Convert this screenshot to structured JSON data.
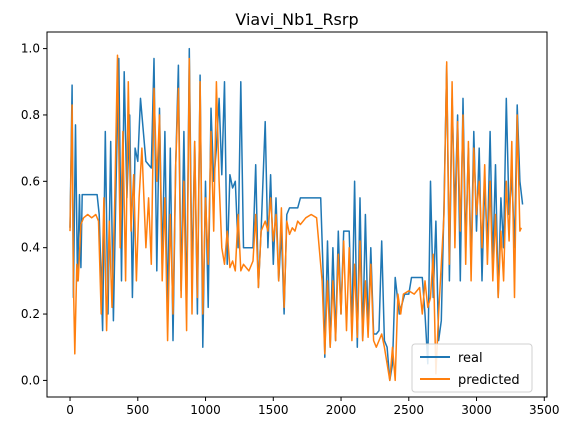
{
  "chart_data": {
    "type": "line",
    "title": "Viavi_Nb1_Rsrp",
    "xlabel": "",
    "ylabel": "",
    "xlim": [
      -170,
      3520
    ],
    "ylim": [
      -0.05,
      1.05
    ],
    "xticks": [
      0,
      500,
      1000,
      1500,
      2000,
      2500,
      3000,
      3500
    ],
    "xtick_labels": [
      "0",
      "500",
      "1000",
      "1500",
      "2000",
      "2500",
      "3000",
      "3500"
    ],
    "yticks": [
      0.0,
      0.2,
      0.4,
      0.6,
      0.8,
      1.0
    ],
    "ytick_labels": [
      "0.0",
      "0.2",
      "0.4",
      "0.6",
      "0.8",
      "1.0"
    ],
    "grid": false,
    "legend_position": "lower-right",
    "series": [
      {
        "name": "real",
        "color": "#1f77b4",
        "points": [
          [
            0,
            0.46
          ],
          [
            15,
            0.89
          ],
          [
            25,
            0.25
          ],
          [
            40,
            0.77
          ],
          [
            55,
            0.3
          ],
          [
            70,
            0.56
          ],
          [
            80,
            0.34
          ],
          [
            90,
            0.56
          ],
          [
            200,
            0.56
          ],
          [
            215,
            0.5
          ],
          [
            240,
            0.15
          ],
          [
            260,
            0.75
          ],
          [
            280,
            0.2
          ],
          [
            300,
            0.72
          ],
          [
            320,
            0.18
          ],
          [
            340,
            0.6
          ],
          [
            360,
            0.97
          ],
          [
            380,
            0.3
          ],
          [
            400,
            0.93
          ],
          [
            420,
            0.55
          ],
          [
            440,
            0.8
          ],
          [
            460,
            0.25
          ],
          [
            480,
            0.7
          ],
          [
            500,
            0.66
          ],
          [
            520,
            0.85
          ],
          [
            560,
            0.66
          ],
          [
            600,
            0.64
          ],
          [
            620,
            0.97
          ],
          [
            640,
            0.33
          ],
          [
            660,
            0.82
          ],
          [
            680,
            0.35
          ],
          [
            700,
            0.75
          ],
          [
            720,
            0.2
          ],
          [
            740,
            0.7
          ],
          [
            760,
            0.12
          ],
          [
            780,
            0.65
          ],
          [
            800,
            0.95
          ],
          [
            820,
            0.27
          ],
          [
            840,
            0.75
          ],
          [
            860,
            0.2
          ],
          [
            880,
            1.0
          ],
          [
            900,
            0.3
          ],
          [
            920,
            0.72
          ],
          [
            940,
            0.2
          ],
          [
            960,
            0.92
          ],
          [
            980,
            0.1
          ],
          [
            1000,
            0.6
          ],
          [
            1020,
            0.22
          ],
          [
            1040,
            0.82
          ],
          [
            1060,
            0.6
          ],
          [
            1080,
            0.7
          ],
          [
            1100,
            0.85
          ],
          [
            1120,
            0.62
          ],
          [
            1140,
            0.9
          ],
          [
            1160,
            0.35
          ],
          [
            1180,
            0.62
          ],
          [
            1200,
            0.58
          ],
          [
            1220,
            0.6
          ],
          [
            1240,
            0.4
          ],
          [
            1260,
            0.9
          ],
          [
            1280,
            0.4
          ],
          [
            1350,
            0.4
          ],
          [
            1370,
            0.65
          ],
          [
            1390,
            0.28
          ],
          [
            1410,
            0.45
          ],
          [
            1440,
            0.78
          ],
          [
            1460,
            0.4
          ],
          [
            1480,
            0.62
          ],
          [
            1500,
            0.35
          ],
          [
            1520,
            0.55
          ],
          [
            1540,
            0.3
          ],
          [
            1560,
            0.45
          ],
          [
            1580,
            0.2
          ],
          [
            1600,
            0.5
          ],
          [
            1620,
            0.52
          ],
          [
            1680,
            0.52
          ],
          [
            1700,
            0.55
          ],
          [
            1850,
            0.55
          ],
          [
            1870,
            0.3
          ],
          [
            1880,
            0.07
          ],
          [
            1900,
            0.42
          ],
          [
            1920,
            0.1
          ],
          [
            1940,
            0.4
          ],
          [
            1960,
            0.12
          ],
          [
            1980,
            0.45
          ],
          [
            2000,
            0.2
          ],
          [
            2020,
            0.45
          ],
          [
            2060,
            0.45
          ],
          [
            2080,
            0.15
          ],
          [
            2100,
            0.6
          ],
          [
            2120,
            0.1
          ],
          [
            2140,
            0.55
          ],
          [
            2160,
            0.12
          ],
          [
            2180,
            0.5
          ],
          [
            2200,
            0.15
          ],
          [
            2220,
            0.4
          ],
          [
            2240,
            0.14
          ],
          [
            2260,
            0.14
          ],
          [
            2280,
            0.15
          ],
          [
            2300,
            0.42
          ],
          [
            2320,
            0.12
          ],
          [
            2340,
            0.1
          ],
          [
            2360,
            0.0
          ],
          [
            2380,
            0.05
          ],
          [
            2400,
            0.31
          ],
          [
            2430,
            0.2
          ],
          [
            2470,
            0.26
          ],
          [
            2500,
            0.26
          ],
          [
            2520,
            0.31
          ],
          [
            2600,
            0.31
          ],
          [
            2620,
            0.2
          ],
          [
            2640,
            0.05
          ],
          [
            2660,
            0.6
          ],
          [
            2680,
            0.25
          ],
          [
            2700,
            0.48
          ],
          [
            2720,
            0.12
          ],
          [
            2740,
            0.18
          ],
          [
            2760,
            0.53
          ],
          [
            2780,
            0.95
          ],
          [
            2800,
            0.3
          ],
          [
            2820,
            0.85
          ],
          [
            2840,
            0.5
          ],
          [
            2860,
            0.8
          ],
          [
            2880,
            0.3
          ],
          [
            2900,
            0.85
          ],
          [
            2920,
            0.4
          ],
          [
            2940,
            0.7
          ],
          [
            2960,
            0.35
          ],
          [
            2980,
            0.75
          ],
          [
            3000,
            0.45
          ],
          [
            3020,
            0.7
          ],
          [
            3040,
            0.3
          ],
          [
            3060,
            0.6
          ],
          [
            3080,
            0.4
          ],
          [
            3100,
            0.75
          ],
          [
            3120,
            0.35
          ],
          [
            3140,
            0.65
          ],
          [
            3160,
            0.25
          ],
          [
            3180,
            0.55
          ],
          [
            3200,
            0.4
          ],
          [
            3220,
            0.85
          ],
          [
            3240,
            0.5
          ],
          [
            3260,
            0.62
          ],
          [
            3280,
            0.4
          ],
          [
            3300,
            0.83
          ],
          [
            3320,
            0.6
          ],
          [
            3340,
            0.53
          ]
        ]
      },
      {
        "name": "predicted",
        "color": "#ff7f0e",
        "points": [
          [
            0,
            0.45
          ],
          [
            15,
            0.83
          ],
          [
            25,
            0.3
          ],
          [
            35,
            0.08
          ],
          [
            50,
            0.35
          ],
          [
            60,
            0.3
          ],
          [
            80,
            0.47
          ],
          [
            100,
            0.49
          ],
          [
            130,
            0.5
          ],
          [
            160,
            0.49
          ],
          [
            190,
            0.5
          ],
          [
            210,
            0.48
          ],
          [
            230,
            0.2
          ],
          [
            250,
            0.55
          ],
          [
            270,
            0.15
          ],
          [
            290,
            0.48
          ],
          [
            310,
            0.22
          ],
          [
            330,
            0.55
          ],
          [
            350,
            0.98
          ],
          [
            370,
            0.4
          ],
          [
            390,
            0.75
          ],
          [
            410,
            0.3
          ],
          [
            430,
            0.9
          ],
          [
            450,
            0.45
          ],
          [
            470,
            0.62
          ],
          [
            490,
            0.3
          ],
          [
            510,
            0.55
          ],
          [
            530,
            0.7
          ],
          [
            560,
            0.4
          ],
          [
            580,
            0.55
          ],
          [
            600,
            0.35
          ],
          [
            620,
            0.88
          ],
          [
            640,
            0.6
          ],
          [
            660,
            0.8
          ],
          [
            680,
            0.3
          ],
          [
            700,
            0.55
          ],
          [
            720,
            0.12
          ],
          [
            740,
            0.5
          ],
          [
            760,
            0.2
          ],
          [
            780,
            0.65
          ],
          [
            800,
            0.88
          ],
          [
            820,
            0.25
          ],
          [
            840,
            0.6
          ],
          [
            860,
            0.15
          ],
          [
            880,
            0.97
          ],
          [
            900,
            0.2
          ],
          [
            920,
            0.72
          ],
          [
            940,
            0.25
          ],
          [
            960,
            0.9
          ],
          [
            980,
            0.2
          ],
          [
            1000,
            0.55
          ],
          [
            1020,
            0.35
          ],
          [
            1040,
            0.75
          ],
          [
            1060,
            0.45
          ],
          [
            1080,
            0.9
          ],
          [
            1100,
            0.6
          ],
          [
            1120,
            0.4
          ],
          [
            1140,
            0.35
          ],
          [
            1160,
            0.45
          ],
          [
            1180,
            0.34
          ],
          [
            1200,
            0.36
          ],
          [
            1220,
            0.33
          ],
          [
            1240,
            0.5
          ],
          [
            1260,
            0.33
          ],
          [
            1280,
            0.35
          ],
          [
            1300,
            0.34
          ],
          [
            1320,
            0.33
          ],
          [
            1350,
            0.36
          ],
          [
            1370,
            0.5
          ],
          [
            1390,
            0.28
          ],
          [
            1410,
            0.45
          ],
          [
            1440,
            0.48
          ],
          [
            1460,
            0.45
          ],
          [
            1480,
            0.55
          ],
          [
            1500,
            0.42
          ],
          [
            1520,
            0.5
          ],
          [
            1540,
            0.3
          ],
          [
            1560,
            0.52
          ],
          [
            1580,
            0.22
          ],
          [
            1600,
            0.48
          ],
          [
            1620,
            0.44
          ],
          [
            1640,
            0.46
          ],
          [
            1660,
            0.45
          ],
          [
            1680,
            0.48
          ],
          [
            1700,
            0.47
          ],
          [
            1740,
            0.49
          ],
          [
            1780,
            0.5
          ],
          [
            1820,
            0.49
          ],
          [
            1860,
            0.3
          ],
          [
            1880,
            0.08
          ],
          [
            1900,
            0.3
          ],
          [
            1920,
            0.1
          ],
          [
            1940,
            0.3
          ],
          [
            1960,
            0.12
          ],
          [
            1980,
            0.38
          ],
          [
            2000,
            0.2
          ],
          [
            2020,
            0.42
          ],
          [
            2040,
            0.15
          ],
          [
            2060,
            0.4
          ],
          [
            2080,
            0.12
          ],
          [
            2100,
            0.35
          ],
          [
            2120,
            0.13
          ],
          [
            2140,
            0.42
          ],
          [
            2160,
            0.12
          ],
          [
            2180,
            0.3
          ],
          [
            2200,
            0.13
          ],
          [
            2220,
            0.35
          ],
          [
            2240,
            0.12
          ],
          [
            2260,
            0.1
          ],
          [
            2280,
            0.12
          ],
          [
            2300,
            0.14
          ],
          [
            2320,
            0.1
          ],
          [
            2340,
            0.05
          ],
          [
            2360,
            0.0
          ],
          [
            2380,
            0.1
          ],
          [
            2400,
            0.0
          ],
          [
            2420,
            0.26
          ],
          [
            2440,
            0.2
          ],
          [
            2460,
            0.26
          ],
          [
            2500,
            0.27
          ],
          [
            2540,
            0.26
          ],
          [
            2580,
            0.28
          ],
          [
            2600,
            0.2
          ],
          [
            2620,
            0.3
          ],
          [
            2640,
            0.22
          ],
          [
            2660,
            0.25
          ],
          [
            2680,
            0.38
          ],
          [
            2700,
            0.02
          ],
          [
            2720,
            0.2
          ],
          [
            2740,
            0.35
          ],
          [
            2760,
            0.5
          ],
          [
            2780,
            0.96
          ],
          [
            2800,
            0.35
          ],
          [
            2820,
            0.9
          ],
          [
            2840,
            0.4
          ],
          [
            2860,
            0.78
          ],
          [
            2880,
            0.45
          ],
          [
            2900,
            0.8
          ],
          [
            2920,
            0.35
          ],
          [
            2940,
            0.72
          ],
          [
            2960,
            0.3
          ],
          [
            2980,
            0.7
          ],
          [
            3000,
            0.5
          ],
          [
            3020,
            0.6
          ],
          [
            3040,
            0.4
          ],
          [
            3060,
            0.65
          ],
          [
            3080,
            0.35
          ],
          [
            3100,
            0.6
          ],
          [
            3120,
            0.3
          ],
          [
            3140,
            0.5
          ],
          [
            3160,
            0.25
          ],
          [
            3180,
            0.45
          ],
          [
            3200,
            0.3
          ],
          [
            3220,
            0.6
          ],
          [
            3240,
            0.42
          ],
          [
            3260,
            0.72
          ],
          [
            3280,
            0.25
          ],
          [
            3300,
            0.8
          ],
          [
            3320,
            0.45
          ],
          [
            3330,
            0.46
          ]
        ]
      }
    ]
  }
}
